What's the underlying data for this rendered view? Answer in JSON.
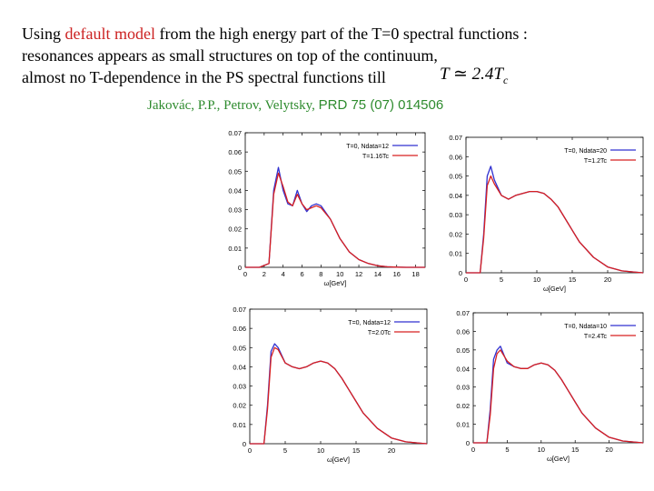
{
  "slide": {
    "line1_pre": "Using ",
    "line1_highlight": "default model",
    "line1_post": " from the high energy part of the T=0 spectral functions :",
    "line2": "resonances appears as small structures on top of the continuum,",
    "line3": "almost no T-dependence in the PS spectral functions till",
    "math": {
      "lhs": "T",
      "op": "≃",
      "val": "2.4T",
      "sub": "c"
    },
    "citation_authors": "Jakovác, P.P., Petrov, Velytsky,",
    "citation_ref": "PRD 75 (07) 014506"
  },
  "colors": {
    "highlight": "#cc2222",
    "citation": "#2e8b2e",
    "series_t0": "#3030d0",
    "series_t": "#d82020"
  },
  "chart_data": [
    {
      "type": "line",
      "xlabel": "ω[GeV]",
      "ylabel": "",
      "xlim": [
        0,
        19
      ],
      "ylim": [
        0,
        0.07
      ],
      "x_ticks": [
        "0",
        "2",
        "4",
        "6",
        "8",
        "10",
        "12",
        "14",
        "16",
        "18"
      ],
      "y_ticks": [
        "0",
        "0.01",
        "0.02",
        "0.03",
        "0.04",
        "0.05",
        "0.06",
        "0.07"
      ],
      "legend": [
        "T=0, Ndata=12",
        "T=1.16Tc"
      ],
      "legend_position": "top-right",
      "series": [
        {
          "name": "T=0, Ndata=12",
          "x": [
            0,
            1.5,
            2.5,
            3,
            3.5,
            4,
            4.5,
            5,
            5.5,
            6,
            6.5,
            7,
            7.5,
            8,
            9,
            10,
            11,
            12,
            13,
            14,
            15,
            16,
            17,
            18,
            19
          ],
          "y": [
            0,
            0,
            0.002,
            0.04,
            0.052,
            0.04,
            0.033,
            0.032,
            0.04,
            0.033,
            0.029,
            0.032,
            0.033,
            0.032,
            0.025,
            0.015,
            0.008,
            0.004,
            0.002,
            0.0008,
            0.0003,
            0.0001,
            0,
            0,
            0
          ]
        },
        {
          "name": "T=1.16Tc",
          "x": [
            0,
            1.5,
            2.5,
            3,
            3.5,
            4,
            4.5,
            5,
            5.5,
            6,
            6.5,
            7,
            7.5,
            8,
            9,
            10,
            11,
            12,
            13,
            14,
            15,
            16,
            17,
            18,
            19
          ],
          "y": [
            0,
            0,
            0.002,
            0.038,
            0.049,
            0.042,
            0.034,
            0.032,
            0.038,
            0.033,
            0.03,
            0.031,
            0.032,
            0.031,
            0.025,
            0.015,
            0.008,
            0.004,
            0.002,
            0.0008,
            0.0003,
            0.0001,
            0,
            0,
            0
          ]
        }
      ]
    },
    {
      "type": "line",
      "xlabel": "ω[GeV]",
      "ylabel": "",
      "xlim": [
        0,
        25
      ],
      "ylim": [
        0,
        0.07
      ],
      "x_ticks": [
        "0",
        "5",
        "10",
        "15",
        "20"
      ],
      "y_ticks": [
        "0",
        "0.01",
        "0.02",
        "0.03",
        "0.04",
        "0.05",
        "0.06",
        "0.07"
      ],
      "legend": [
        "T=0, Ndata=20",
        "T=1.2Tc"
      ],
      "legend_position": "top-right",
      "series": [
        {
          "name": "T=0, Ndata=20",
          "x": [
            0,
            2,
            2.5,
            3,
            3.5,
            4,
            5,
            6,
            7,
            8,
            9,
            10,
            11,
            12,
            13,
            14,
            15,
            16,
            18,
            20,
            22,
            24,
            25
          ],
          "y": [
            0,
            0,
            0.02,
            0.05,
            0.055,
            0.048,
            0.04,
            0.038,
            0.04,
            0.041,
            0.042,
            0.042,
            0.041,
            0.038,
            0.034,
            0.028,
            0.022,
            0.016,
            0.008,
            0.003,
            0.001,
            0.0003,
            0
          ]
        },
        {
          "name": "T=1.2Tc",
          "x": [
            0,
            2,
            2.5,
            3,
            3.5,
            4,
            5,
            6,
            7,
            8,
            9,
            10,
            11,
            12,
            13,
            14,
            15,
            16,
            18,
            20,
            22,
            24,
            25
          ],
          "y": [
            0,
            0,
            0.018,
            0.045,
            0.05,
            0.046,
            0.04,
            0.038,
            0.04,
            0.041,
            0.042,
            0.042,
            0.041,
            0.038,
            0.034,
            0.028,
            0.022,
            0.016,
            0.008,
            0.003,
            0.001,
            0.0003,
            0
          ]
        }
      ]
    },
    {
      "type": "line",
      "xlabel": "ω[GeV]",
      "ylabel": "",
      "xlim": [
        0,
        25
      ],
      "ylim": [
        0,
        0.07
      ],
      "x_ticks": [
        "0",
        "5",
        "10",
        "15",
        "20"
      ],
      "y_ticks": [
        "0",
        "0.01",
        "0.02",
        "0.03",
        "0.04",
        "0.05",
        "0.06",
        "0.07"
      ],
      "legend": [
        "T=0, Ndata=12",
        "T=2.0Tc"
      ],
      "legend_position": "top-right",
      "series": [
        {
          "name": "T=0, Ndata=12",
          "x": [
            0,
            2,
            2.5,
            3,
            3.5,
            4,
            5,
            6,
            7,
            8,
            9,
            10,
            11,
            12,
            13,
            14,
            15,
            16,
            18,
            20,
            22,
            24,
            25
          ],
          "y": [
            0,
            0,
            0.02,
            0.048,
            0.052,
            0.05,
            0.042,
            0.04,
            0.039,
            0.04,
            0.042,
            0.043,
            0.042,
            0.039,
            0.034,
            0.028,
            0.022,
            0.016,
            0.008,
            0.003,
            0.001,
            0.0003,
            0
          ]
        },
        {
          "name": "T=2.0Tc",
          "x": [
            0,
            2,
            2.5,
            3,
            3.5,
            4,
            5,
            6,
            7,
            8,
            9,
            10,
            11,
            12,
            13,
            14,
            15,
            16,
            18,
            20,
            22,
            24,
            25
          ],
          "y": [
            0,
            0,
            0.018,
            0.045,
            0.05,
            0.049,
            0.042,
            0.04,
            0.039,
            0.04,
            0.042,
            0.043,
            0.042,
            0.039,
            0.034,
            0.028,
            0.022,
            0.016,
            0.008,
            0.003,
            0.001,
            0.0003,
            0
          ]
        }
      ]
    },
    {
      "type": "line",
      "xlabel": "ω[GeV]",
      "ylabel": "",
      "xlim": [
        0,
        25
      ],
      "ylim": [
        0,
        0.07
      ],
      "x_ticks": [
        "0",
        "5",
        "10",
        "15",
        "20"
      ],
      "y_ticks": [
        "0",
        "0.01",
        "0.02",
        "0.03",
        "0.04",
        "0.05",
        "0.06",
        "0.07"
      ],
      "legend": [
        "T=0, Ndata=10",
        "T=2.4Tc"
      ],
      "legend_position": "top-right",
      "series": [
        {
          "name": "T=0, Ndata=10",
          "x": [
            0,
            2,
            2.5,
            3,
            3.5,
            4,
            5,
            6,
            7,
            8,
            9,
            10,
            11,
            12,
            13,
            14,
            15,
            16,
            18,
            20,
            22,
            24,
            25
          ],
          "y": [
            0,
            0,
            0.018,
            0.045,
            0.05,
            0.052,
            0.043,
            0.041,
            0.04,
            0.04,
            0.042,
            0.043,
            0.042,
            0.039,
            0.034,
            0.028,
            0.022,
            0.016,
            0.008,
            0.003,
            0.001,
            0.0003,
            0
          ]
        },
        {
          "name": "T=2.4Tc",
          "x": [
            0,
            2,
            2.5,
            3,
            3.5,
            4,
            5,
            6,
            7,
            8,
            9,
            10,
            11,
            12,
            13,
            14,
            15,
            16,
            18,
            20,
            22,
            24,
            25
          ],
          "y": [
            0,
            0,
            0.015,
            0.04,
            0.048,
            0.05,
            0.044,
            0.041,
            0.04,
            0.04,
            0.042,
            0.043,
            0.042,
            0.039,
            0.034,
            0.028,
            0.022,
            0.016,
            0.008,
            0.003,
            0.001,
            0.0003,
            0
          ]
        }
      ]
    }
  ]
}
